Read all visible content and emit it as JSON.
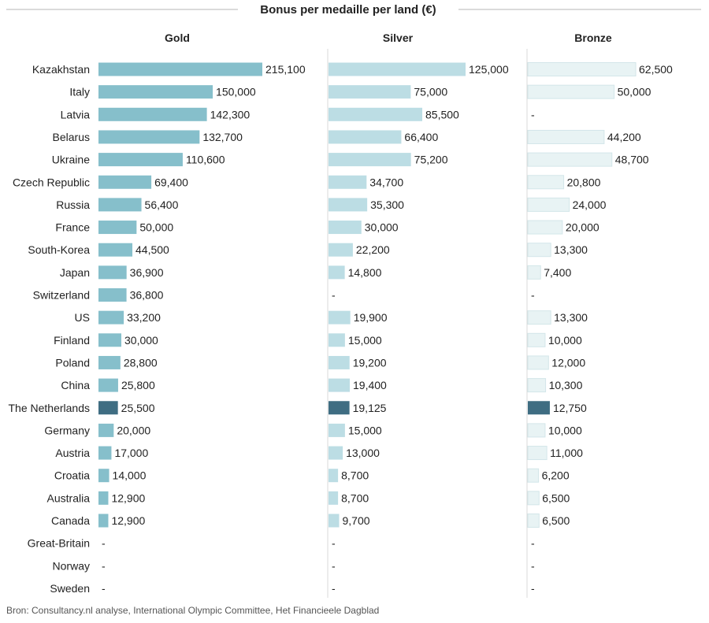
{
  "chart_data": {
    "type": "bar",
    "title": "Bonus per medaille per land (€)",
    "source": "Bron: Consultancy.nl analyse, International Olympic Committee, Het Financieele Dagblad",
    "categories": [
      "Kazakhstan",
      "Italy",
      "Latvia",
      "Belarus",
      "Ukraine",
      "Czech Republic",
      "Russia",
      "France",
      "South-Korea",
      "Japan",
      "Switzerland",
      "US",
      "Finland",
      "Poland",
      "China",
      "The Netherlands",
      "Germany",
      "Austria",
      "Croatia",
      "Australia",
      "Canada",
      "Great-Britain",
      "Norway",
      "Sweden"
    ],
    "highlight": "The Netherlands",
    "missing_label": "-",
    "series": [
      {
        "name": "Gold",
        "color": "#86bfcb",
        "highlight_color": "#3f6d82",
        "values": [
          215100,
          150000,
          142300,
          132700,
          110600,
          69400,
          56400,
          50000,
          44500,
          36900,
          36800,
          33200,
          30000,
          28800,
          25800,
          25500,
          20000,
          17000,
          14000,
          12900,
          12900,
          null,
          null,
          null
        ],
        "labels": [
          "215,100",
          "150,000",
          "142,300",
          "132,700",
          "110,600",
          "69,400",
          "56,400",
          "50,000",
          "44,500",
          "36,900",
          "36,800",
          "33,200",
          "30,000",
          "28,800",
          "25,800",
          "25,500",
          "20,000",
          "17,000",
          "14,000",
          "12,900",
          "12,900",
          null,
          null,
          null
        ]
      },
      {
        "name": "Silver",
        "color": "#bcdde4",
        "highlight_color": "#3f6d82",
        "values": [
          125000,
          75000,
          85500,
          66400,
          75200,
          34700,
          35300,
          30000,
          22200,
          14800,
          null,
          19900,
          15000,
          19200,
          19400,
          19125,
          15000,
          13000,
          8700,
          8700,
          9700,
          null,
          null,
          null
        ],
        "labels": [
          "125,000",
          "75,000",
          "85,500",
          "66,400",
          "75,200",
          "34,700",
          "35,300",
          "30,000",
          "22,200",
          "14,800",
          null,
          "19,900",
          "15,000",
          "19,200",
          "19,400",
          "19,125",
          "15,000",
          "13,000",
          "8,700",
          "8,700",
          "9,700",
          null,
          null,
          null
        ]
      },
      {
        "name": "Bronze",
        "color": "#e8f3f4",
        "highlight_color": "#3f6d82",
        "values": [
          62500,
          50000,
          null,
          44200,
          48700,
          20800,
          24000,
          20000,
          13300,
          7400,
          null,
          13300,
          10000,
          12000,
          10300,
          12750,
          10000,
          11000,
          6200,
          6500,
          6500,
          null,
          null,
          null
        ],
        "labels": [
          "62,500",
          "50,000",
          null,
          "44,200",
          "48,700",
          "20,800",
          "24,000",
          "20,000",
          "13,300",
          "7,400",
          null,
          "13,300",
          "10,000",
          "12,000",
          "10,300",
          "12,750",
          "10,000",
          "11,000",
          "6,200",
          "6,500",
          "6,500",
          null,
          null,
          null
        ]
      }
    ]
  }
}
